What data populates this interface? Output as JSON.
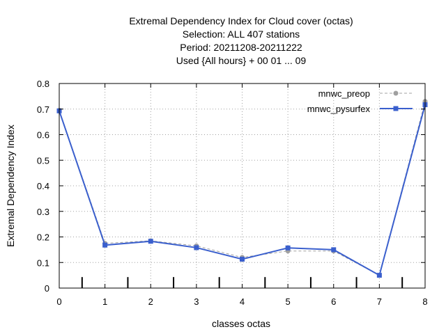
{
  "chart_data": {
    "type": "line",
    "title_lines": [
      "Extremal Dependency Index  for Cloud cover (octas)",
      "Selection: ALL    407 stations",
      "Period: 20211208-20211222",
      "Used {All hours} + 00 01 ... 09"
    ],
    "xlabel": "classes octas",
    "ylabel": "Extremal Dependency Index",
    "x_ticks": [
      "0",
      "1",
      "2",
      "3",
      "4",
      "5",
      "6",
      "7",
      "8"
    ],
    "y_ticks": [
      "0",
      "0.1",
      "0.2",
      "0.3",
      "0.4",
      "0.5",
      "0.6",
      "0.7",
      "0.8"
    ],
    "xlim": [
      0,
      8
    ],
    "ylim": [
      0,
      0.8
    ],
    "grid": true,
    "legend_position": "top-right",
    "threshold_markers": [
      0.5,
      1.5,
      2.5,
      3.5,
      4.5,
      5.5,
      6.5,
      7.5
    ],
    "series": [
      {
        "name": "mnwc_preop",
        "color": "#a0a0a0",
        "style": "dashed",
        "marker": "circle",
        "x": [
          0,
          1,
          2,
          3,
          4,
          5,
          6,
          7,
          8
        ],
        "y": [
          0.695,
          0.175,
          0.185,
          0.165,
          0.12,
          0.145,
          0.145,
          0.05,
          0.73
        ]
      },
      {
        "name": "mnwc_pysurfex",
        "color": "#3a5fcd",
        "style": "solid",
        "marker": "square",
        "x": [
          0,
          1,
          2,
          3,
          4,
          5,
          6,
          7,
          8
        ],
        "y": [
          0.693,
          0.168,
          0.183,
          0.158,
          0.113,
          0.157,
          0.15,
          0.05,
          0.717
        ]
      }
    ]
  }
}
